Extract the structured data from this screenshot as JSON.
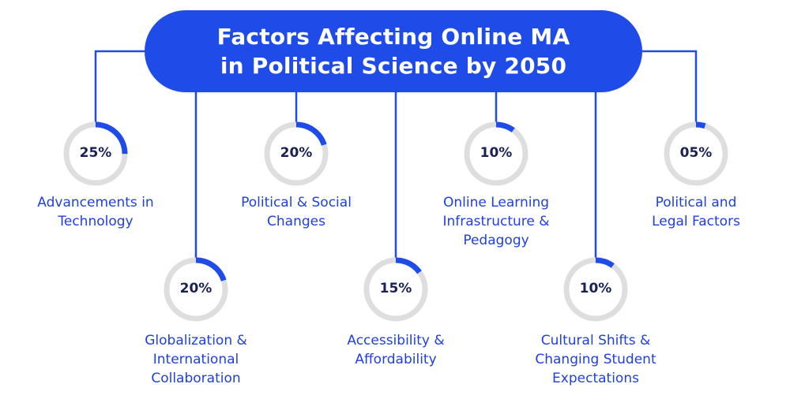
{
  "title": {
    "line1": "Factors Affecting Online MA",
    "line2": "in Political Science by 2050"
  },
  "colors": {
    "accent": "#1f4be8",
    "ring_track": "#dedede",
    "ring_fill": "#1f4be8",
    "label": "#1f3fe0",
    "percent": "#1a2255"
  },
  "factors": [
    {
      "percent": "25%",
      "value": 25,
      "label_lines": [
        "Advancements in",
        "Technology"
      ]
    },
    {
      "percent": "20%",
      "value": 20,
      "label_lines": [
        "Globalization &",
        "International",
        "Collaboration"
      ]
    },
    {
      "percent": "20%",
      "value": 20,
      "label_lines": [
        "Political & Social",
        "Changes"
      ]
    },
    {
      "percent": "15%",
      "value": 15,
      "label_lines": [
        "Accessibility &",
        "Affordability"
      ]
    },
    {
      "percent": "10%",
      "value": 10,
      "label_lines": [
        "Online Learning",
        "Infrastructure &",
        "Pedagogy"
      ]
    },
    {
      "percent": "10%",
      "value": 10,
      "label_lines": [
        "Cultural Shifts &",
        "Changing Student",
        "Expectations"
      ]
    },
    {
      "percent": "05%",
      "value": 5,
      "label_lines": [
        "Political and",
        "Legal Factors"
      ]
    }
  ]
}
